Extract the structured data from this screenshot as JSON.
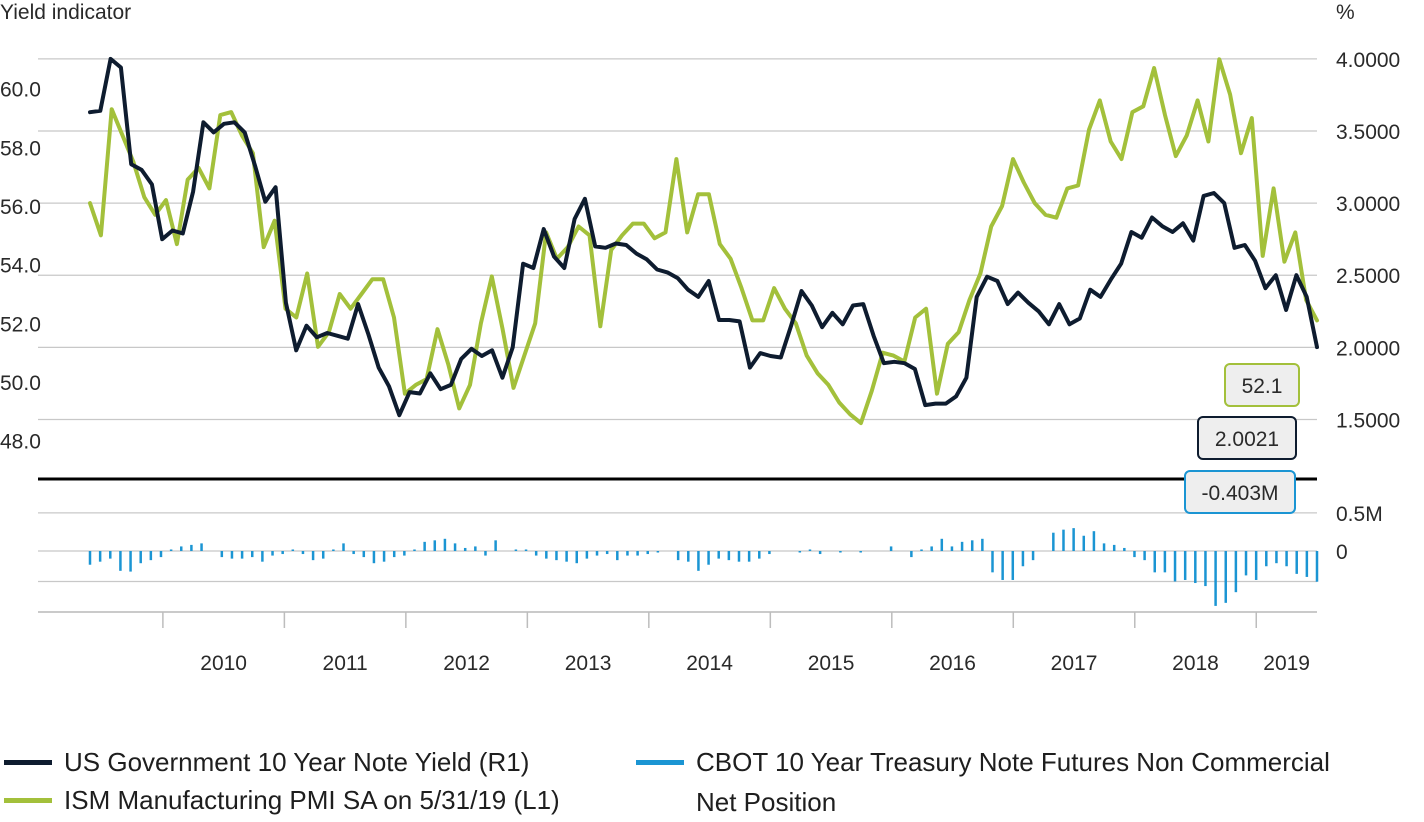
{
  "chart_data": {
    "type": "line",
    "left_axis_title": "Yield indicator",
    "right_axis_title": "%",
    "left_ticks": [
      "48.0",
      "50.0",
      "52.0",
      "54.0",
      "56.0",
      "58.0",
      "60.0"
    ],
    "left_tick_values": [
      48,
      50,
      52,
      54,
      56,
      58,
      60
    ],
    "left_ylim": [
      47.0,
      62.0
    ],
    "right_ticks": [
      "1.5000",
      "2.0000",
      "2.5000",
      "3.0000",
      "3.5000",
      "4.0000"
    ],
    "right_tick_values": [
      1.5,
      2.0,
      2.5,
      3.0,
      3.5,
      4.0
    ],
    "right_ylim": [
      1.15,
      4.2
    ],
    "bottom_ticks": [
      "0.5M",
      "0"
    ],
    "bottom_tick_values": [
      0.5,
      0
    ],
    "bottom_ylim": [
      -0.8,
      0.8
    ],
    "x_labels": [
      "2010",
      "2011",
      "2012",
      "2013",
      "2014",
      "2015",
      "2016",
      "2017",
      "2018",
      "2019"
    ],
    "x_start_year": 2009.4,
    "x_end_year": 2019.5,
    "grid": true,
    "legend_position": "bottom",
    "series": [
      {
        "name": "US Government 10 Year Note Yield (R1)",
        "axis": "right",
        "color": "#0e1c2f",
        "last_value_label": "2.0021",
        "values": [
          3.63,
          3.64,
          4.0,
          3.94,
          3.27,
          3.23,
          3.13,
          2.75,
          2.81,
          2.79,
          3.08,
          3.56,
          3.49,
          3.55,
          3.56,
          3.49,
          3.26,
          3.01,
          3.11,
          2.31,
          1.98,
          2.15,
          2.07,
          2.1,
          2.08,
          2.06,
          2.3,
          2.09,
          1.86,
          1.73,
          1.53,
          1.69,
          1.68,
          1.82,
          1.71,
          1.74,
          1.92,
          1.99,
          1.94,
          1.98,
          1.79,
          2.0,
          2.58,
          2.55,
          2.82,
          2.63,
          2.55,
          2.89,
          3.03,
          2.7,
          2.69,
          2.72,
          2.71,
          2.65,
          2.61,
          2.54,
          2.52,
          2.48,
          2.4,
          2.35,
          2.46,
          2.19,
          2.19,
          2.18,
          1.86,
          1.96,
          1.94,
          1.93,
          2.15,
          2.39,
          2.29,
          2.14,
          2.24,
          2.16,
          2.29,
          2.3,
          2.08,
          1.89,
          1.9,
          1.89,
          1.85,
          1.6,
          1.61,
          1.61,
          1.66,
          1.79,
          2.35,
          2.49,
          2.46,
          2.3,
          2.38,
          2.31,
          2.25,
          2.16,
          2.3,
          2.16,
          2.2,
          2.4,
          2.35,
          2.47,
          2.58,
          2.8,
          2.76,
          2.9,
          2.84,
          2.8,
          2.86,
          2.74,
          3.05,
          3.07,
          3.0,
          2.69,
          2.71,
          2.6,
          2.41,
          2.5,
          2.26,
          2.5,
          2.35,
          2.0021
        ]
      },
      {
        "name": "ISM Manufacturing PMI SA on 5/31/19 (L1)",
        "axis": "left",
        "color": "#a3c03b",
        "last_value_label": "52.1",
        "values": [
          56.1,
          55.0,
          59.3,
          58.4,
          57.5,
          56.3,
          55.7,
          56.2,
          54.7,
          56.9,
          57.3,
          56.6,
          59.1,
          59.2,
          58.4,
          57.8,
          54.6,
          55.5,
          52.5,
          52.2,
          53.7,
          51.2,
          51.7,
          53.0,
          52.5,
          53.0,
          53.5,
          53.5,
          52.2,
          49.6,
          49.9,
          50.1,
          51.8,
          50.6,
          49.1,
          49.9,
          52.0,
          53.6,
          51.8,
          49.8,
          50.9,
          52.0,
          55.1,
          54.2,
          54.6,
          55.3,
          55.0,
          51.9,
          54.5,
          55.0,
          55.4,
          55.4,
          54.9,
          55.1,
          57.6,
          55.1,
          56.4,
          56.4,
          54.7,
          54.2,
          53.2,
          52.1,
          52.1,
          53.2,
          52.5,
          52.0,
          50.9,
          50.3,
          49.9,
          49.3,
          48.9,
          48.6,
          49.7,
          51.0,
          50.9,
          50.7,
          52.2,
          52.5,
          49.6,
          51.3,
          51.7,
          52.8,
          53.7,
          55.3,
          56.0,
          57.6,
          56.8,
          56.1,
          55.7,
          55.6,
          56.6,
          56.7,
          58.6,
          59.6,
          58.2,
          57.6,
          59.2,
          59.4,
          60.7,
          59.1,
          57.7,
          58.4,
          59.6,
          58.2,
          61.0,
          59.8,
          57.8,
          59.0,
          54.3,
          56.6,
          54.1,
          55.1,
          52.8,
          52.1
        ]
      },
      {
        "name": "CBOT 10 Year Treasury Note Futures Non Commercial Net Position",
        "axis": "bottom",
        "color": "#1b95d3",
        "last_value_label": "-0.403M",
        "values": [
          -0.18,
          -0.14,
          -0.1,
          -0.26,
          -0.27,
          -0.16,
          -0.12,
          -0.08,
          0.02,
          0.06,
          0.08,
          0.1,
          0.0,
          -0.08,
          -0.1,
          -0.1,
          -0.08,
          -0.14,
          -0.06,
          -0.04,
          0.02,
          -0.04,
          -0.12,
          -0.1,
          0.02,
          0.1,
          -0.04,
          -0.08,
          -0.16,
          -0.14,
          -0.08,
          -0.06,
          0.02,
          0.12,
          0.14,
          0.16,
          0.1,
          0.04,
          0.06,
          -0.06,
          0.14,
          0.0,
          0.02,
          0.02,
          -0.06,
          -0.1,
          -0.12,
          -0.14,
          -0.16,
          -0.1,
          -0.06,
          -0.04,
          -0.12,
          -0.06,
          -0.06,
          -0.04,
          -0.02,
          0.0,
          -0.12,
          -0.14,
          -0.26,
          -0.18,
          -0.1,
          -0.12,
          -0.14,
          -0.14,
          -0.1,
          -0.04,
          0.0,
          0.0,
          -0.02,
          0.02,
          -0.04,
          0.0,
          -0.02,
          0.0,
          -0.02,
          0.0,
          0.0,
          0.06,
          0.0,
          -0.08,
          0.02,
          0.06,
          0.16,
          0.06,
          0.12,
          0.14,
          0.16,
          -0.28,
          -0.38,
          -0.38,
          -0.2,
          -0.12,
          0.0,
          0.24,
          0.28,
          0.3,
          0.2,
          0.26,
          0.1,
          0.08,
          0.04,
          -0.08,
          -0.12,
          -0.28,
          -0.28,
          -0.4,
          -0.38,
          -0.42,
          -0.46,
          -0.72,
          -0.68,
          -0.54,
          -0.32,
          -0.38,
          -0.2,
          -0.16,
          -0.2,
          -0.3,
          -0.34,
          -0.403
        ]
      }
    ]
  }
}
